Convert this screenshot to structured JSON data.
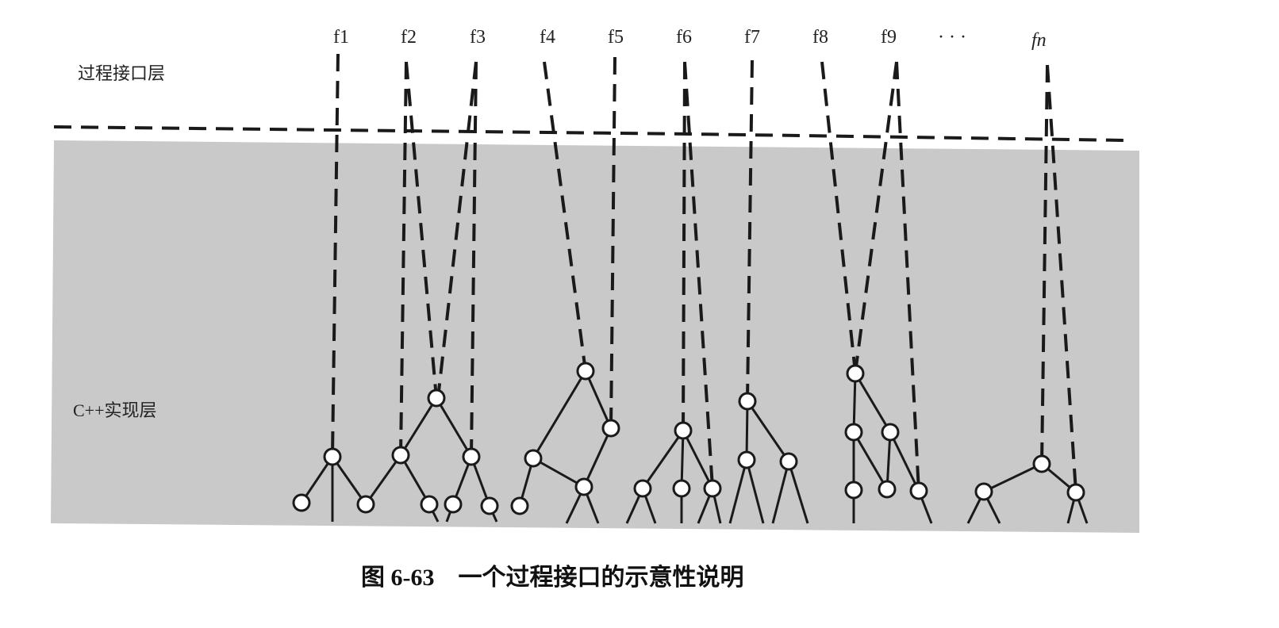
{
  "layers": {
    "interface": "过程接口层",
    "implementation": "C++实现层"
  },
  "functions": [
    "f1",
    "f2",
    "f3",
    "f4",
    "f5",
    "f6",
    "f7",
    "f8",
    "f9",
    "fn"
  ],
  "ellipsis": "· · ·",
  "caption": "图 6-63　一个过程接口的示意性说明"
}
